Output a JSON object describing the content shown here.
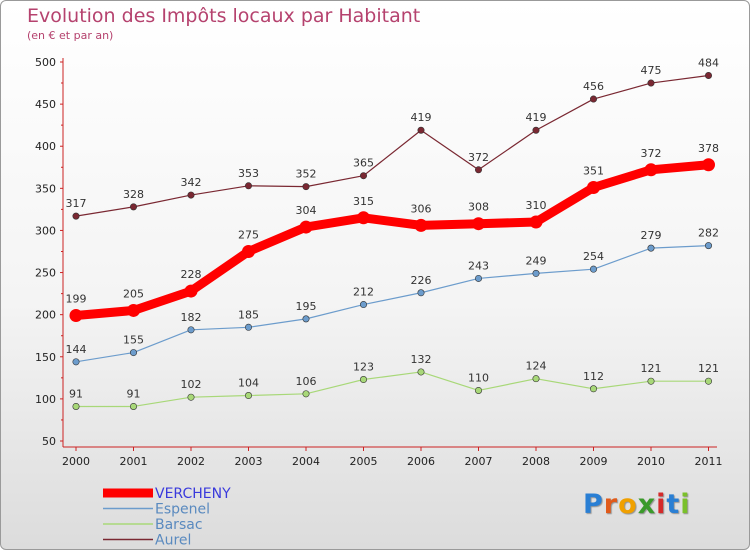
{
  "title": "Evolution des Impôts locaux par Habitant",
  "subtitle": "(en € et par an)",
  "logo": {
    "letters": [
      {
        "ch": "P",
        "color": "#2a7fd4"
      },
      {
        "ch": "r",
        "color": "#e05a1a"
      },
      {
        "ch": "o",
        "color": "#f0a000"
      },
      {
        "ch": "x",
        "color": "#3a9a2a"
      },
      {
        "ch": "i",
        "color": "#d42a2a"
      },
      {
        "ch": "t",
        "color": "#2a7fd4"
      },
      {
        "ch": "i",
        "color": "#7ac02a"
      }
    ]
  },
  "chart_data": {
    "type": "line",
    "title": "Evolution des Impôts locaux par Habitant",
    "subtitle": "(en € et par an)",
    "xlabel": "",
    "ylabel": "",
    "x": [
      "2000",
      "2001",
      "2002",
      "2003",
      "2004",
      "2005",
      "2006",
      "2007",
      "2008",
      "2009",
      "2010",
      "2011"
    ],
    "ylim": [
      50,
      500
    ],
    "yticks": [
      50,
      100,
      150,
      200,
      250,
      300,
      350,
      400,
      450,
      500
    ],
    "grid": false,
    "legend_position": "bottom-left",
    "series": [
      {
        "name": "Aurel",
        "color": "#7a2832",
        "values": [
          317,
          328,
          342,
          353,
          352,
          365,
          419,
          372,
          419,
          456,
          475,
          484
        ]
      },
      {
        "name": "Espenel",
        "color": "#6c9ccc",
        "values": [
          144,
          155,
          182,
          185,
          195,
          212,
          226,
          243,
          249,
          254,
          279,
          282
        ]
      },
      {
        "name": "Barsac",
        "color": "#a8d878",
        "values": [
          91,
          91,
          102,
          104,
          106,
          123,
          132,
          110,
          124,
          112,
          121,
          121
        ]
      },
      {
        "name": "VERCHENY",
        "color": "#ff0000",
        "values": [
          199,
          205,
          228,
          275,
          304,
          315,
          306,
          308,
          310,
          351,
          372,
          378
        ]
      }
    ],
    "legend": [
      "VERCHENY",
      "Espenel",
      "Barsac",
      "Aurel"
    ]
  }
}
